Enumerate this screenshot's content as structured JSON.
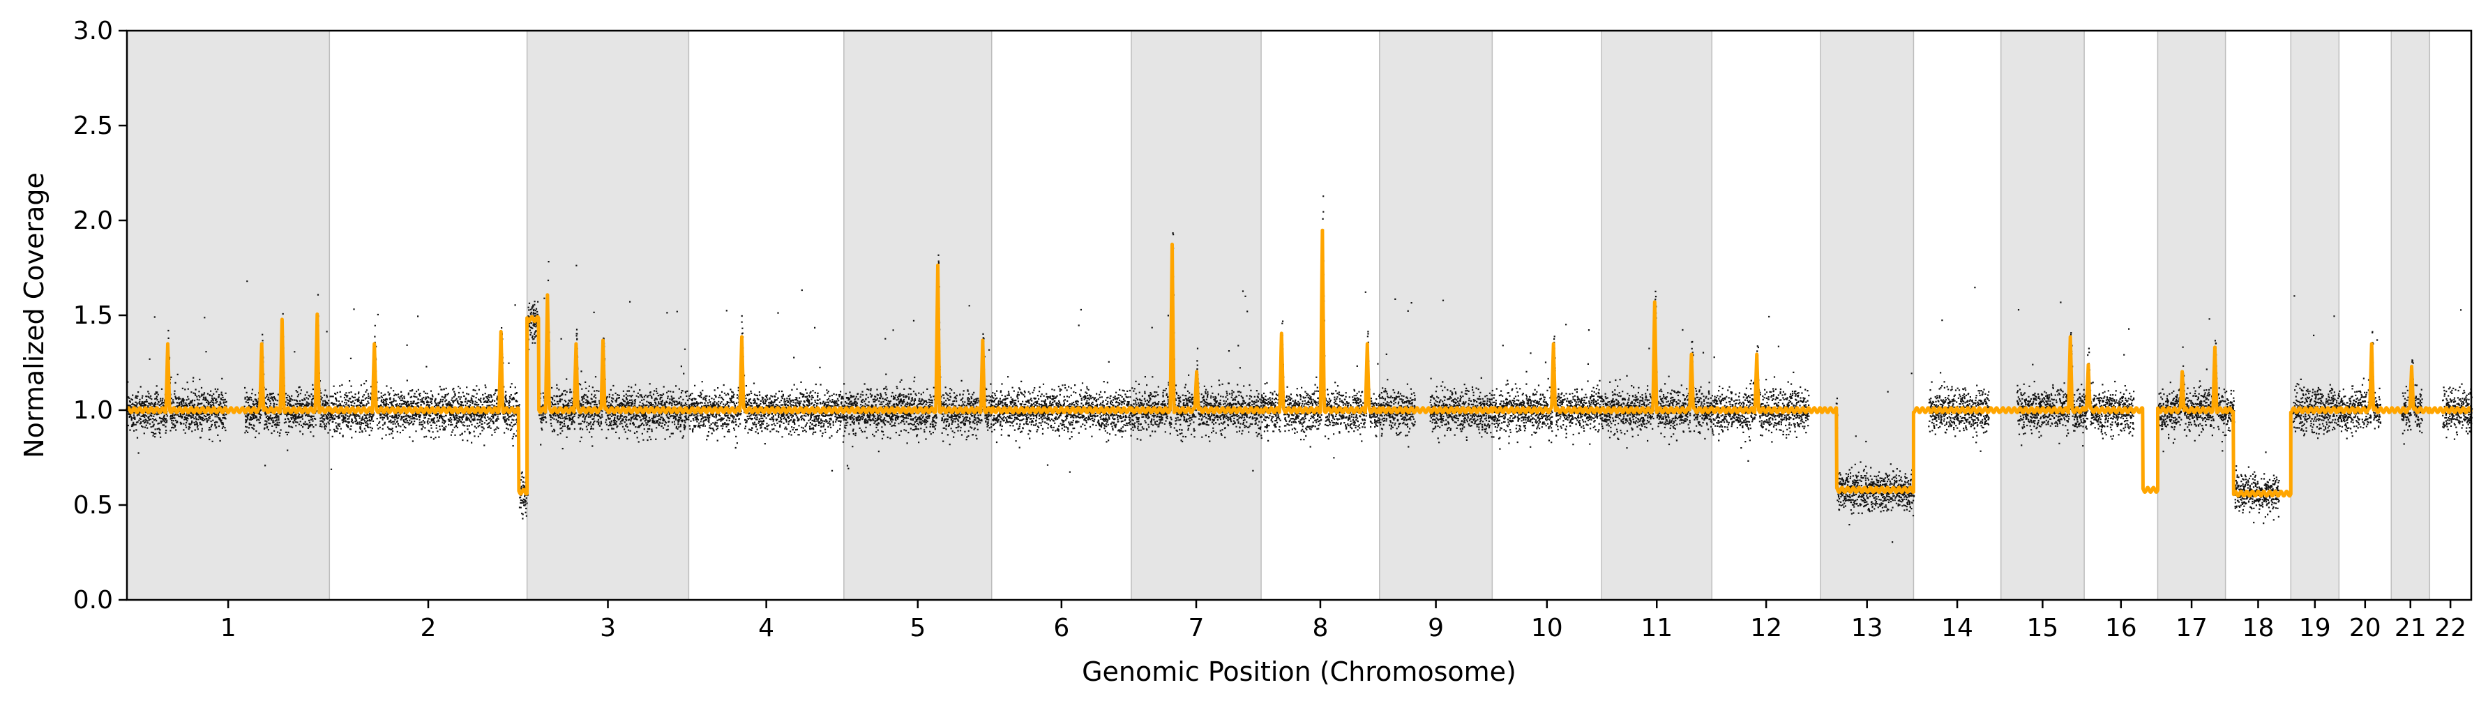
{
  "chart_data": {
    "type": "scatter",
    "title": "",
    "xlabel": "Genomic Position (Chromosome)",
    "ylabel": "Normalized Coverage",
    "ylim": [
      0,
      3.0
    ],
    "yticks": [
      "0.0",
      "0.5",
      "1.0",
      "1.5",
      "2.0",
      "2.5",
      "3.0"
    ],
    "grid": false,
    "legend": "none",
    "chromosome_labels": [
      "1",
      "2",
      "3",
      "4",
      "5",
      "6",
      "7",
      "8",
      "9",
      "10",
      "11",
      "12",
      "13",
      "14",
      "15",
      "16",
      "17",
      "18",
      "19",
      "20",
      "21",
      "22"
    ],
    "chromosome_sizes_mb": [
      248,
      242,
      198,
      190,
      181,
      171,
      159,
      145,
      138,
      134,
      135,
      133,
      114,
      107,
      102,
      90,
      83,
      80,
      59,
      64,
      47,
      51
    ],
    "shaded_chromosomes": [
      "1",
      "3",
      "5",
      "7",
      "9",
      "11",
      "13",
      "15",
      "17",
      "19",
      "21"
    ],
    "colors": {
      "points": "#111111",
      "segments": "#ffa500",
      "shade": "#e5e5e5",
      "shade_edge": "#bdbdbd"
    },
    "gap_regions_mb": [
      {
        "chrom": "1",
        "start": 121,
        "end": 143
      },
      {
        "chrom": "9",
        "start": 43,
        "end": 61
      },
      {
        "chrom": "12",
        "start": 118,
        "end": 133
      },
      {
        "chrom": "13",
        "start": 0,
        "end": 18
      },
      {
        "chrom": "14",
        "start": 0,
        "end": 18
      },
      {
        "chrom": "14",
        "start": 92,
        "end": 107
      },
      {
        "chrom": "15",
        "start": 0,
        "end": 19
      },
      {
        "chrom": "16",
        "start": 60,
        "end": 90
      },
      {
        "chrom": "18",
        "start": 65,
        "end": 80
      },
      {
        "chrom": "19",
        "start": 0,
        "end": 2
      },
      {
        "chrom": "20",
        "start": 50,
        "end": 64
      },
      {
        "chrom": "21",
        "start": 0,
        "end": 12
      },
      {
        "chrom": "21",
        "start": 37,
        "end": 47
      },
      {
        "chrom": "22",
        "start": 0,
        "end": 15
      }
    ],
    "cnv_segments": [
      {
        "chrom": "2",
        "start": 232,
        "end": 242,
        "value": 0.57
      },
      {
        "chrom": "3",
        "start": 0,
        "end": 14,
        "value": 1.48
      },
      {
        "chrom": "13",
        "start": 20,
        "end": 114,
        "value": 0.58
      },
      {
        "chrom": "16",
        "start": 72,
        "end": 90,
        "value": 0.58
      },
      {
        "chrom": "18",
        "start": 10,
        "end": 80,
        "value": 0.56
      }
    ],
    "peaks": [
      {
        "chrom": "1",
        "pos": 50,
        "value": 1.38
      },
      {
        "chrom": "1",
        "pos": 165,
        "value": 1.38
      },
      {
        "chrom": "1",
        "pos": 190,
        "value": 1.52
      },
      {
        "chrom": "1",
        "pos": 233,
        "value": 1.55
      },
      {
        "chrom": "2",
        "pos": 55,
        "value": 1.38
      },
      {
        "chrom": "2",
        "pos": 210,
        "value": 1.45
      },
      {
        "chrom": "3",
        "pos": 25,
        "value": 1.66
      },
      {
        "chrom": "3",
        "pos": 60,
        "value": 1.38
      },
      {
        "chrom": "3",
        "pos": 93,
        "value": 1.4
      },
      {
        "chrom": "4",
        "pos": 65,
        "value": 1.42
      },
      {
        "chrom": "5",
        "pos": 115,
        "value": 1.83
      },
      {
        "chrom": "5",
        "pos": 170,
        "value": 1.4
      },
      {
        "chrom": "7",
        "pos": 50,
        "value": 1.95
      },
      {
        "chrom": "7",
        "pos": 80,
        "value": 1.22
      },
      {
        "chrom": "8",
        "pos": 25,
        "value": 1.44
      },
      {
        "chrom": "8",
        "pos": 75,
        "value": 2.03
      },
      {
        "chrom": "8",
        "pos": 130,
        "value": 1.38
      },
      {
        "chrom": "10",
        "pos": 75,
        "value": 1.38
      },
      {
        "chrom": "11",
        "pos": 65,
        "value": 1.62
      },
      {
        "chrom": "11",
        "pos": 110,
        "value": 1.32
      },
      {
        "chrom": "12",
        "pos": 55,
        "value": 1.32
      },
      {
        "chrom": "15",
        "pos": 85,
        "value": 1.42
      },
      {
        "chrom": "16",
        "pos": 5,
        "value": 1.26
      },
      {
        "chrom": "17",
        "pos": 30,
        "value": 1.22
      },
      {
        "chrom": "17",
        "pos": 70,
        "value": 1.36
      },
      {
        "chrom": "20",
        "pos": 40,
        "value": 1.38
      },
      {
        "chrom": "21",
        "pos": 25,
        "value": 1.25
      }
    ]
  }
}
